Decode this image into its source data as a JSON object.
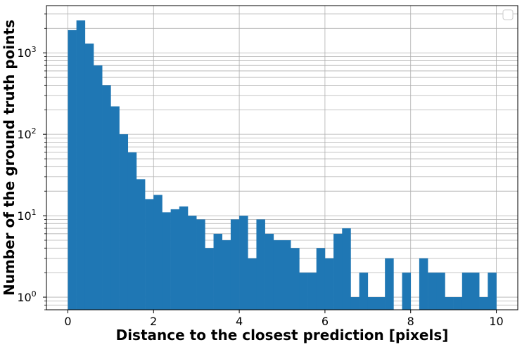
{
  "chart_data": {
    "type": "bar",
    "chart_subtype": "histogram",
    "title": "",
    "xlabel": "Distance to the closest prediction [pixels]",
    "ylabel": "Number of the ground truth points",
    "xlim": [
      -0.5,
      10.5
    ],
    "ylim": [
      0.7,
      3800
    ],
    "y_scale": "log",
    "grid": true,
    "legend": {
      "placement": "upper right",
      "entries": []
    },
    "bar_color": "#1f77b4",
    "bin_width": 0.2,
    "bins": [
      0.0,
      0.2,
      0.4,
      0.6,
      0.8,
      1.0,
      1.2,
      1.4,
      1.6,
      1.8,
      2.0,
      2.2,
      2.4,
      2.6,
      2.8,
      3.0,
      3.2,
      3.4,
      3.6,
      3.8,
      4.0,
      4.2,
      4.4,
      4.6,
      4.8,
      5.0,
      5.2,
      5.4,
      5.6,
      5.8,
      6.0,
      6.2,
      6.4,
      6.6,
      6.8,
      7.0,
      7.2,
      7.4,
      7.6,
      7.8,
      8.0,
      8.2,
      8.4,
      8.6,
      8.8,
      9.0,
      9.2,
      9.4,
      9.6,
      9.8
    ],
    "values": [
      1900,
      2500,
      1300,
      700,
      400,
      220,
      100,
      60,
      28,
      16,
      18,
      11,
      12,
      13,
      10,
      9,
      4,
      6,
      5,
      9,
      10,
      3,
      9,
      6,
      5,
      5,
      4,
      2,
      2,
      4,
      3,
      6,
      7,
      1,
      2,
      1,
      1,
      3,
      0,
      2,
      0,
      3,
      2,
      2,
      1,
      1,
      2,
      2,
      1,
      2
    ],
    "x_ticks": [
      0,
      2,
      4,
      6,
      8,
      10
    ],
    "x_tick_labels": [
      "0",
      "2",
      "4",
      "6",
      "8",
      "10"
    ],
    "y_ticks": [
      1,
      10,
      100,
      1000
    ],
    "y_tick_bases": [
      "10",
      "10",
      "10",
      "10"
    ],
    "y_tick_exponents": [
      "0",
      "1",
      "2",
      "3"
    ]
  }
}
